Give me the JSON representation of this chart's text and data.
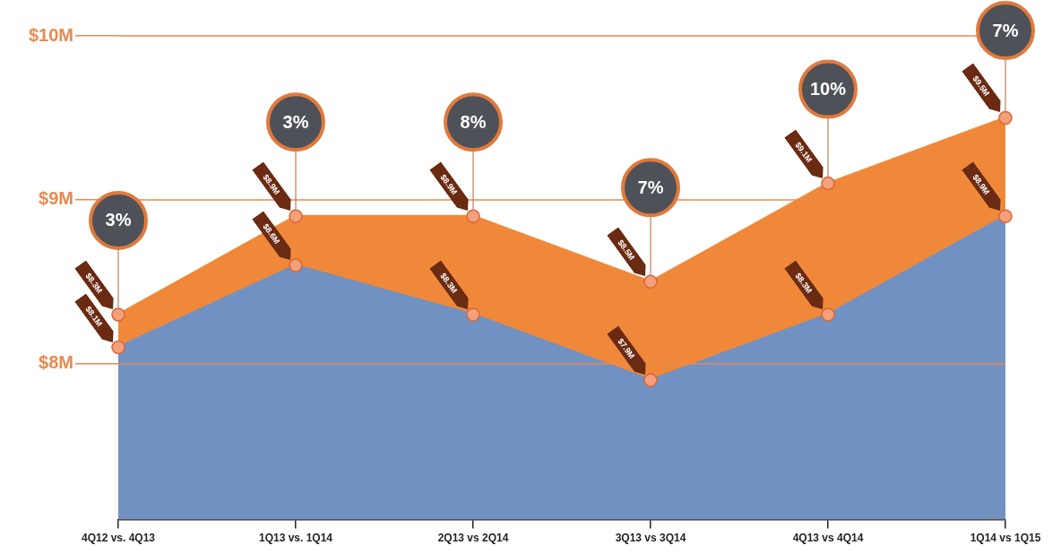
{
  "chart_data": {
    "type": "area",
    "categories": [
      "4Q12 vs. 4Q13",
      "1Q13 vs. 1Q14",
      "2Q13 vs 2Q14",
      "3Q13 vs 3Q14",
      "4Q13 vs 4Q14",
      "1Q14 vs 1Q15"
    ],
    "series": [
      {
        "color": "#7191c2",
        "values": [
          8.1,
          8.6,
          8.3,
          7.9,
          8.3,
          8.9
        ],
        "value_labels": [
          "$8.1M",
          "$8.6M",
          "$8.3M",
          "$7.9M",
          "$8.3M",
          "$8.9M"
        ]
      },
      {
        "color": "#f0883a",
        "values": [
          8.3,
          8.9,
          8.9,
          8.5,
          9.1,
          9.5
        ],
        "value_labels": [
          "$8.3M",
          "$8.9M",
          "$8.9M",
          "$8.5M",
          "$9.1M",
          "$9.5M"
        ]
      }
    ],
    "ylim": [
      7.05,
      10
    ],
    "yticks": [
      {
        "value": 8,
        "label": "$8M"
      },
      {
        "value": 9,
        "label": "$9M"
      },
      {
        "value": 10,
        "label": "$10M"
      }
    ],
    "grid": "y",
    "marker": "circle",
    "line_style": "solid",
    "legend": false,
    "annotations": [
      {
        "text": "3%",
        "x": "4Q12 vs. 4Q13",
        "y": 8.3
      },
      {
        "text": "3%",
        "x": "1Q13 vs. 1Q14",
        "y": 8.9
      },
      {
        "text": "8%",
        "x": "2Q13 vs 2Q14",
        "y": 8.9
      },
      {
        "text": "7%",
        "x": "3Q13 vs 3Q14",
        "y": 8.5
      },
      {
        "text": "10%",
        "x": "4Q13 vs 4Q14",
        "y": 9.1
      },
      {
        "text": "7%",
        "x": "1Q14 vs 1Q15",
        "y": 9.5
      }
    ]
  }
}
